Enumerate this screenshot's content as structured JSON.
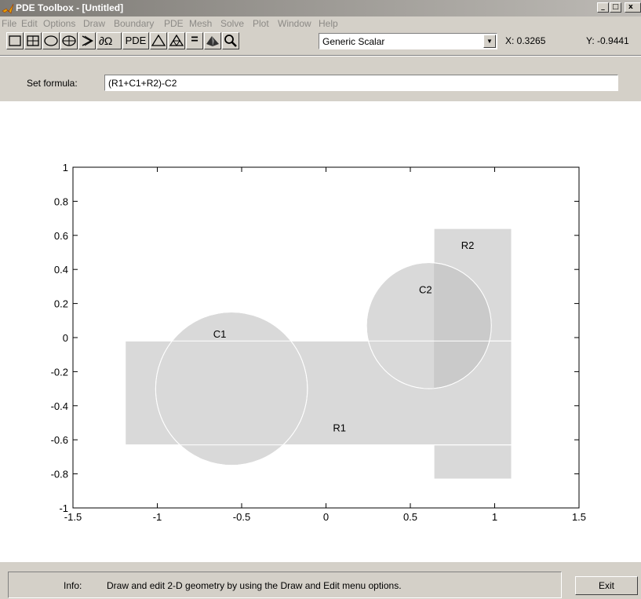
{
  "window": {
    "title": "PDE Toolbox - [Untitled]",
    "minimize_glyph": "_",
    "maximize_glyph": "□",
    "close_glyph": "x"
  },
  "menu": [
    "File",
    "Edit",
    "Options",
    "Draw",
    "Boundary",
    "PDE",
    "Mesh",
    "Solve",
    "Plot",
    "Window",
    "Help"
  ],
  "toolbar": {
    "pde_button_label": "PDE",
    "application_mode": "Generic Scalar",
    "x_readout": "X: 0.3265",
    "y_readout": "Y: -0.9441"
  },
  "formula": {
    "label": "Set formula:",
    "value": "(R1+C1+R2)-C2"
  },
  "plot": {
    "xlim": [
      -1.5,
      1.5
    ],
    "ylim": [
      -1,
      1
    ],
    "x_ticks": [
      "-1.5",
      "-1",
      "-0.5",
      "0",
      "0.5",
      "1",
      "1.5"
    ],
    "y_ticks": [
      "-1",
      "-0.8",
      "-0.6",
      "-0.4",
      "-0.2",
      "0",
      "0.2",
      "0.4",
      "0.6",
      "0.8",
      "1"
    ],
    "x_tick_values": [
      -1.5,
      -1,
      -0.5,
      0,
      0.5,
      1,
      1.5
    ],
    "y_tick_values": [
      -1,
      -0.8,
      -0.6,
      -0.4,
      -0.2,
      0,
      0.2,
      0.4,
      0.6,
      0.8,
      1
    ],
    "shapes": {
      "R1": {
        "label": "R1",
        "xmin": -1.19,
        "xmax": 1.1,
        "ymin": -0.63,
        "ymax": -0.02
      },
      "R2": {
        "label": "R2",
        "xmin": 0.64,
        "xmax": 1.1,
        "ymin": -0.83,
        "ymax": 0.64
      },
      "C1": {
        "label": "C1",
        "cx": -0.56,
        "cy": -0.3,
        "r": 0.45
      },
      "C2": {
        "label": "C2",
        "cx": 0.61,
        "cy": 0.07,
        "r": 0.37
      }
    },
    "colors": {
      "fill": "#d9d9d9",
      "overlap": "#cacaca",
      "edge": "#ffffff",
      "axis": "#000000"
    }
  },
  "status": {
    "info_label": "Info:",
    "info_text": "Draw and edit 2-D geometry by using the Draw and Edit menu options.",
    "exit_label": "Exit"
  }
}
